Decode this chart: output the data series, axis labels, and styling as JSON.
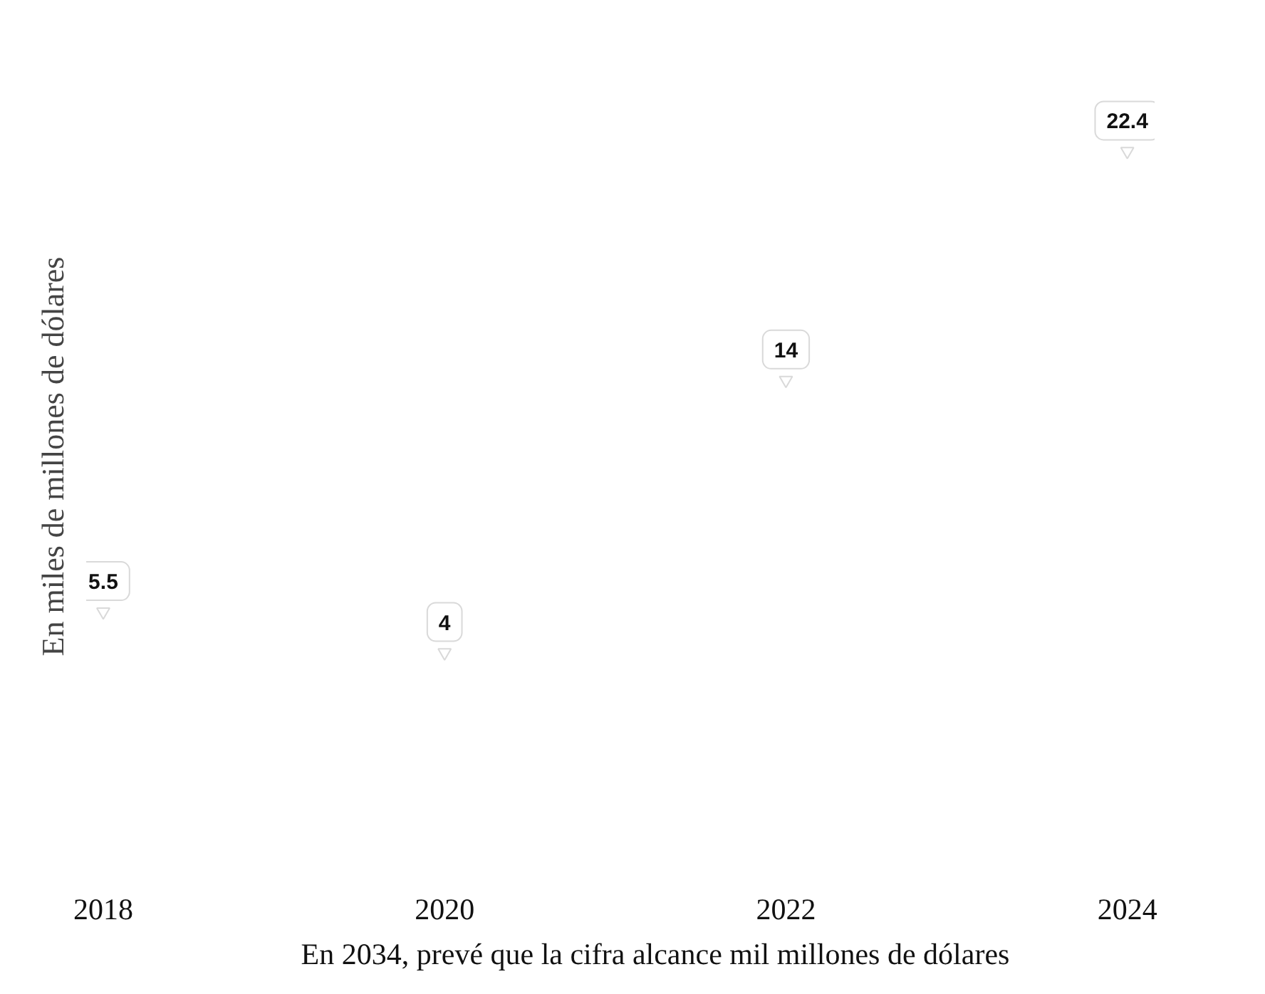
{
  "chart_data": {
    "type": "scatter",
    "marker": "triangle",
    "categories": [
      "2018",
      "2020",
      "2022",
      "2024"
    ],
    "values": [
      5.5,
      4,
      14,
      22.4
    ],
    "color": "#d9d9d9",
    "data_labels": true,
    "ylabel": "En miles de millones de dólares",
    "annotations": [
      "En 2034, prevé que la cifra alcance mil millones de dólares"
    ],
    "grid": false
  }
}
